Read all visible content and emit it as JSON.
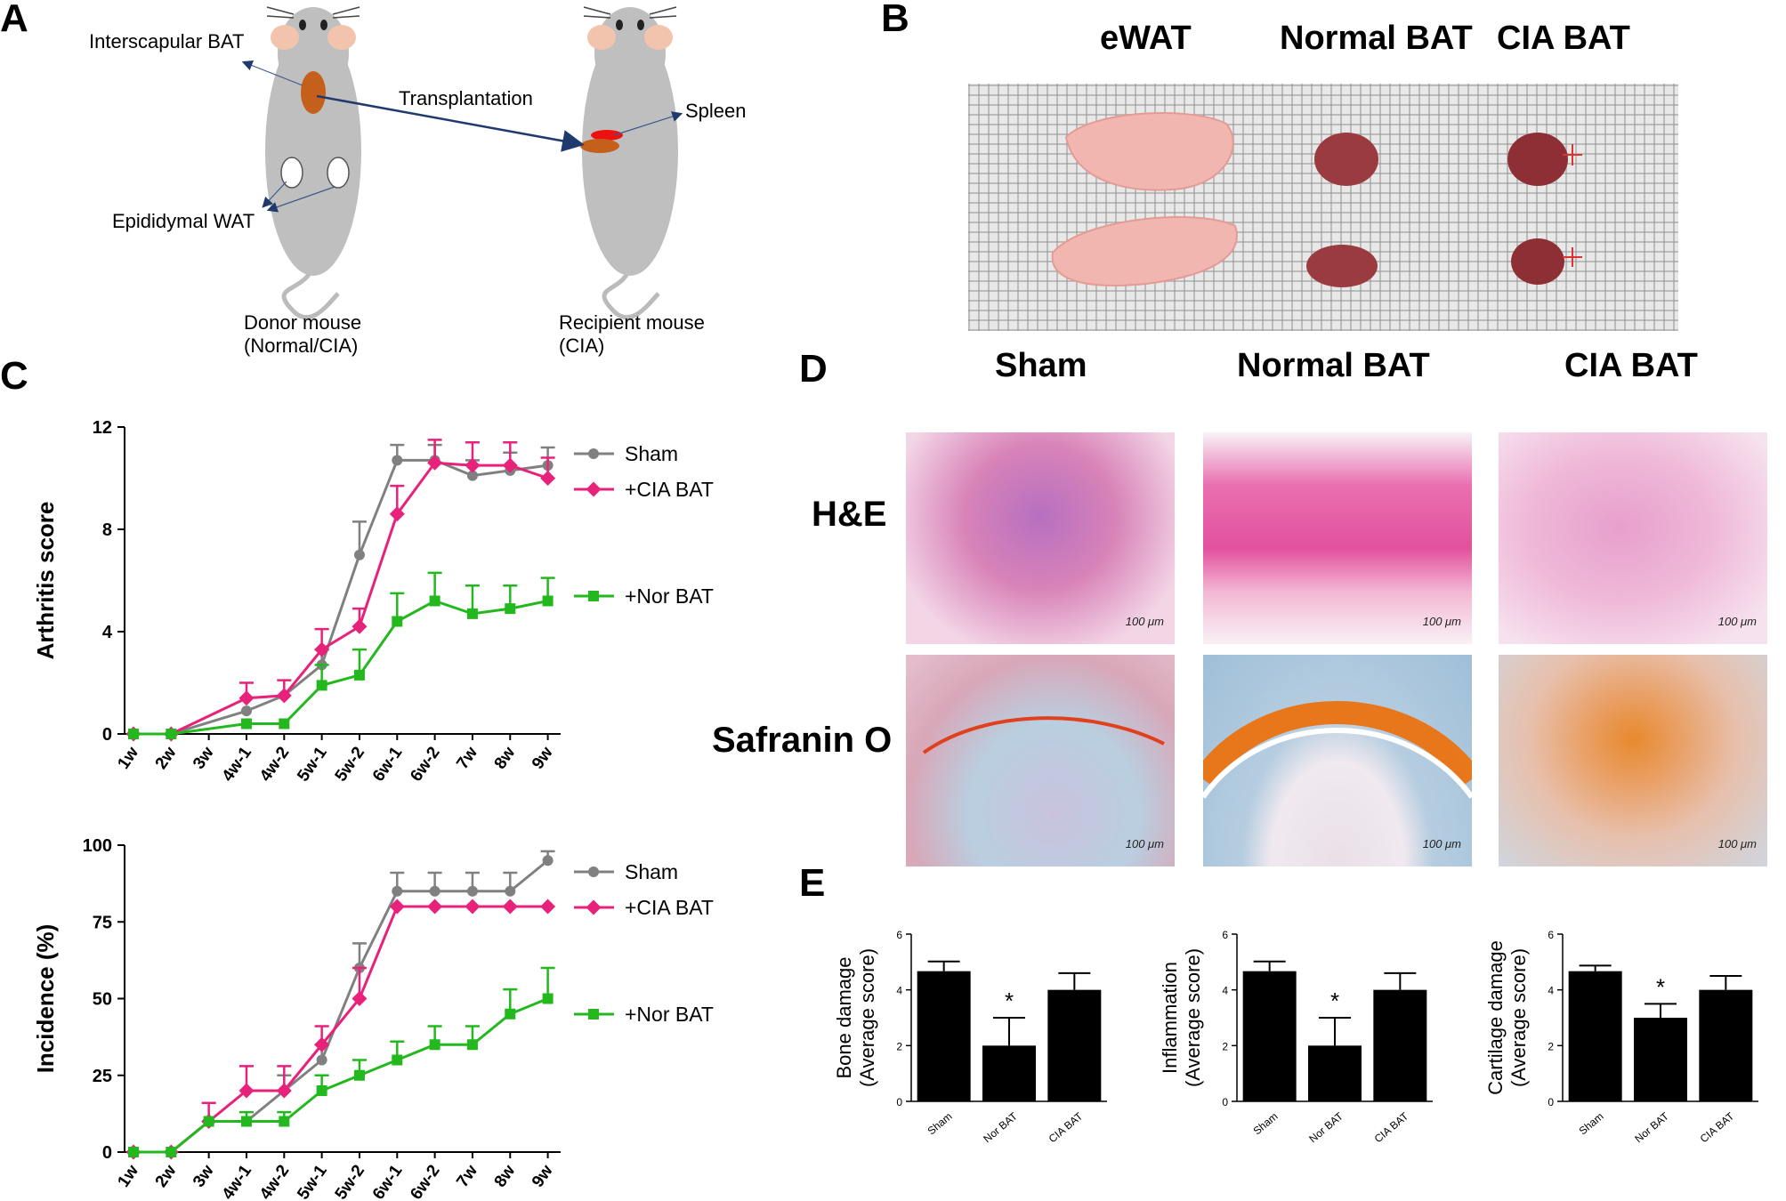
{
  "panels": {
    "A": "A",
    "B": "B",
    "C": "C",
    "D": "D",
    "E": "E"
  },
  "panel_a": {
    "interscapular": "Interscapular BAT",
    "transplantation": "Transplantation",
    "spleen": "Spleen",
    "epididymal": "Epididymal WAT",
    "donor_line1": "Donor mouse",
    "donor_line2": "(Normal/CIA)",
    "recipient_line1": "Recipient mouse",
    "recipient_line2": "(CIA)"
  },
  "panel_b": {
    "col1": "eWAT",
    "col2": "Normal BAT",
    "col3": "CIA BAT"
  },
  "panel_d": {
    "col1": "Sham",
    "col2": "Normal BAT",
    "col3": "CIA BAT",
    "row1": "H&E",
    "row2": "Safranin O",
    "scale": "100 μm"
  },
  "colors": {
    "sham": "#808080",
    "cia": "#e8217a",
    "nor": "#22b81e"
  },
  "chart_data": [
    {
      "type": "line",
      "title": "",
      "ylabel": "Arthritis score",
      "ylim": [
        0,
        12
      ],
      "yticks": [
        0,
        4,
        8,
        12
      ],
      "categories": [
        "1w",
        "2w",
        "3w",
        "4w-1",
        "4w-2",
        "5w-1",
        "5w-2",
        "6w-1",
        "6w-2",
        "7w",
        "8w",
        "9w"
      ],
      "series": [
        {
          "name": "Sham",
          "values": [
            0,
            0,
            null,
            0.9,
            1.5,
            2.7,
            7.0,
            10.7,
            10.7,
            10.1,
            10.3,
            10.5
          ],
          "err": [
            0,
            0,
            0,
            0,
            0,
            0.6,
            1.3,
            0.6,
            0.6,
            0.6,
            0.7,
            0.7
          ]
        },
        {
          "name": "+CIA BAT",
          "values": [
            0,
            0,
            null,
            1.4,
            1.5,
            3.3,
            4.2,
            8.6,
            10.6,
            10.5,
            10.5,
            10.0
          ],
          "err": [
            0,
            0,
            0,
            0.6,
            0.6,
            0.8,
            0.7,
            1.1,
            0.9,
            0.9,
            0.9,
            0.8
          ]
        },
        {
          "name": "+Nor BAT",
          "values": [
            0,
            0,
            null,
            0.4,
            0.4,
            1.9,
            2.3,
            4.4,
            5.2,
            4.7,
            4.9,
            5.2
          ],
          "err": [
            0,
            0,
            0,
            0,
            0,
            0.8,
            1.0,
            1.1,
            1.1,
            1.1,
            0.9,
            0.9
          ]
        }
      ]
    },
    {
      "type": "line",
      "title": "",
      "ylabel": "Incidence (%)",
      "ylim": [
        0,
        100
      ],
      "yticks": [
        0,
        25,
        50,
        75,
        100
      ],
      "categories": [
        "1w",
        "2w",
        "3w",
        "4w-1",
        "4w-2",
        "5w-1",
        "5w-2",
        "6w-1",
        "6w-2",
        "7w",
        "8w",
        "9w"
      ],
      "series": [
        {
          "name": "Sham",
          "values": [
            0,
            0,
            10,
            10,
            20,
            30,
            60,
            85,
            85,
            85,
            85,
            95
          ],
          "err": [
            0,
            0,
            0,
            0,
            5,
            5,
            8,
            6,
            6,
            6,
            6,
            3
          ]
        },
        {
          "name": "+CIA BAT",
          "values": [
            0,
            0,
            10,
            20,
            20,
            35,
            50,
            80,
            80,
            80,
            80,
            80
          ],
          "err": [
            0,
            0,
            6,
            8,
            8,
            6,
            10,
            0,
            0,
            0,
            0,
            0
          ]
        },
        {
          "name": "+Nor BAT",
          "values": [
            0,
            0,
            10,
            10,
            10,
            20,
            25,
            30,
            35,
            35,
            45,
            50
          ],
          "err": [
            0,
            0,
            0,
            3,
            3,
            5,
            5,
            6,
            6,
            6,
            8,
            10
          ]
        }
      ]
    },
    {
      "type": "bar",
      "ylabel": "Bone damage",
      "ylabel2": "(Average score)",
      "ylim": [
        0,
        6
      ],
      "yticks": [
        0,
        2,
        4,
        6
      ],
      "categories": [
        "Sham",
        "Nor BAT",
        "CIA BAT"
      ],
      "values": [
        4.67,
        2.0,
        4.0
      ],
      "err": [
        0.35,
        1.0,
        0.6
      ],
      "annotation": "*"
    },
    {
      "type": "bar",
      "ylabel": "Inflammation",
      "ylabel2": "(Average score)",
      "ylim": [
        0,
        6
      ],
      "yticks": [
        0,
        2,
        4,
        6
      ],
      "categories": [
        "Sham",
        "Nor BAT",
        "CIA BAT"
      ],
      "values": [
        4.67,
        2.0,
        4.0
      ],
      "err": [
        0.35,
        1.0,
        0.6
      ],
      "annotation": "*"
    },
    {
      "type": "bar",
      "ylabel": "Cartilage damage",
      "ylabel2": "(Average score)",
      "ylim": [
        0,
        6
      ],
      "yticks": [
        0,
        2,
        4,
        6
      ],
      "categories": [
        "Sham",
        "Nor BAT",
        "CIA BAT"
      ],
      "values": [
        4.67,
        3.0,
        4.0
      ],
      "err": [
        0.2,
        0.5,
        0.5
      ],
      "annotation": "*"
    }
  ]
}
